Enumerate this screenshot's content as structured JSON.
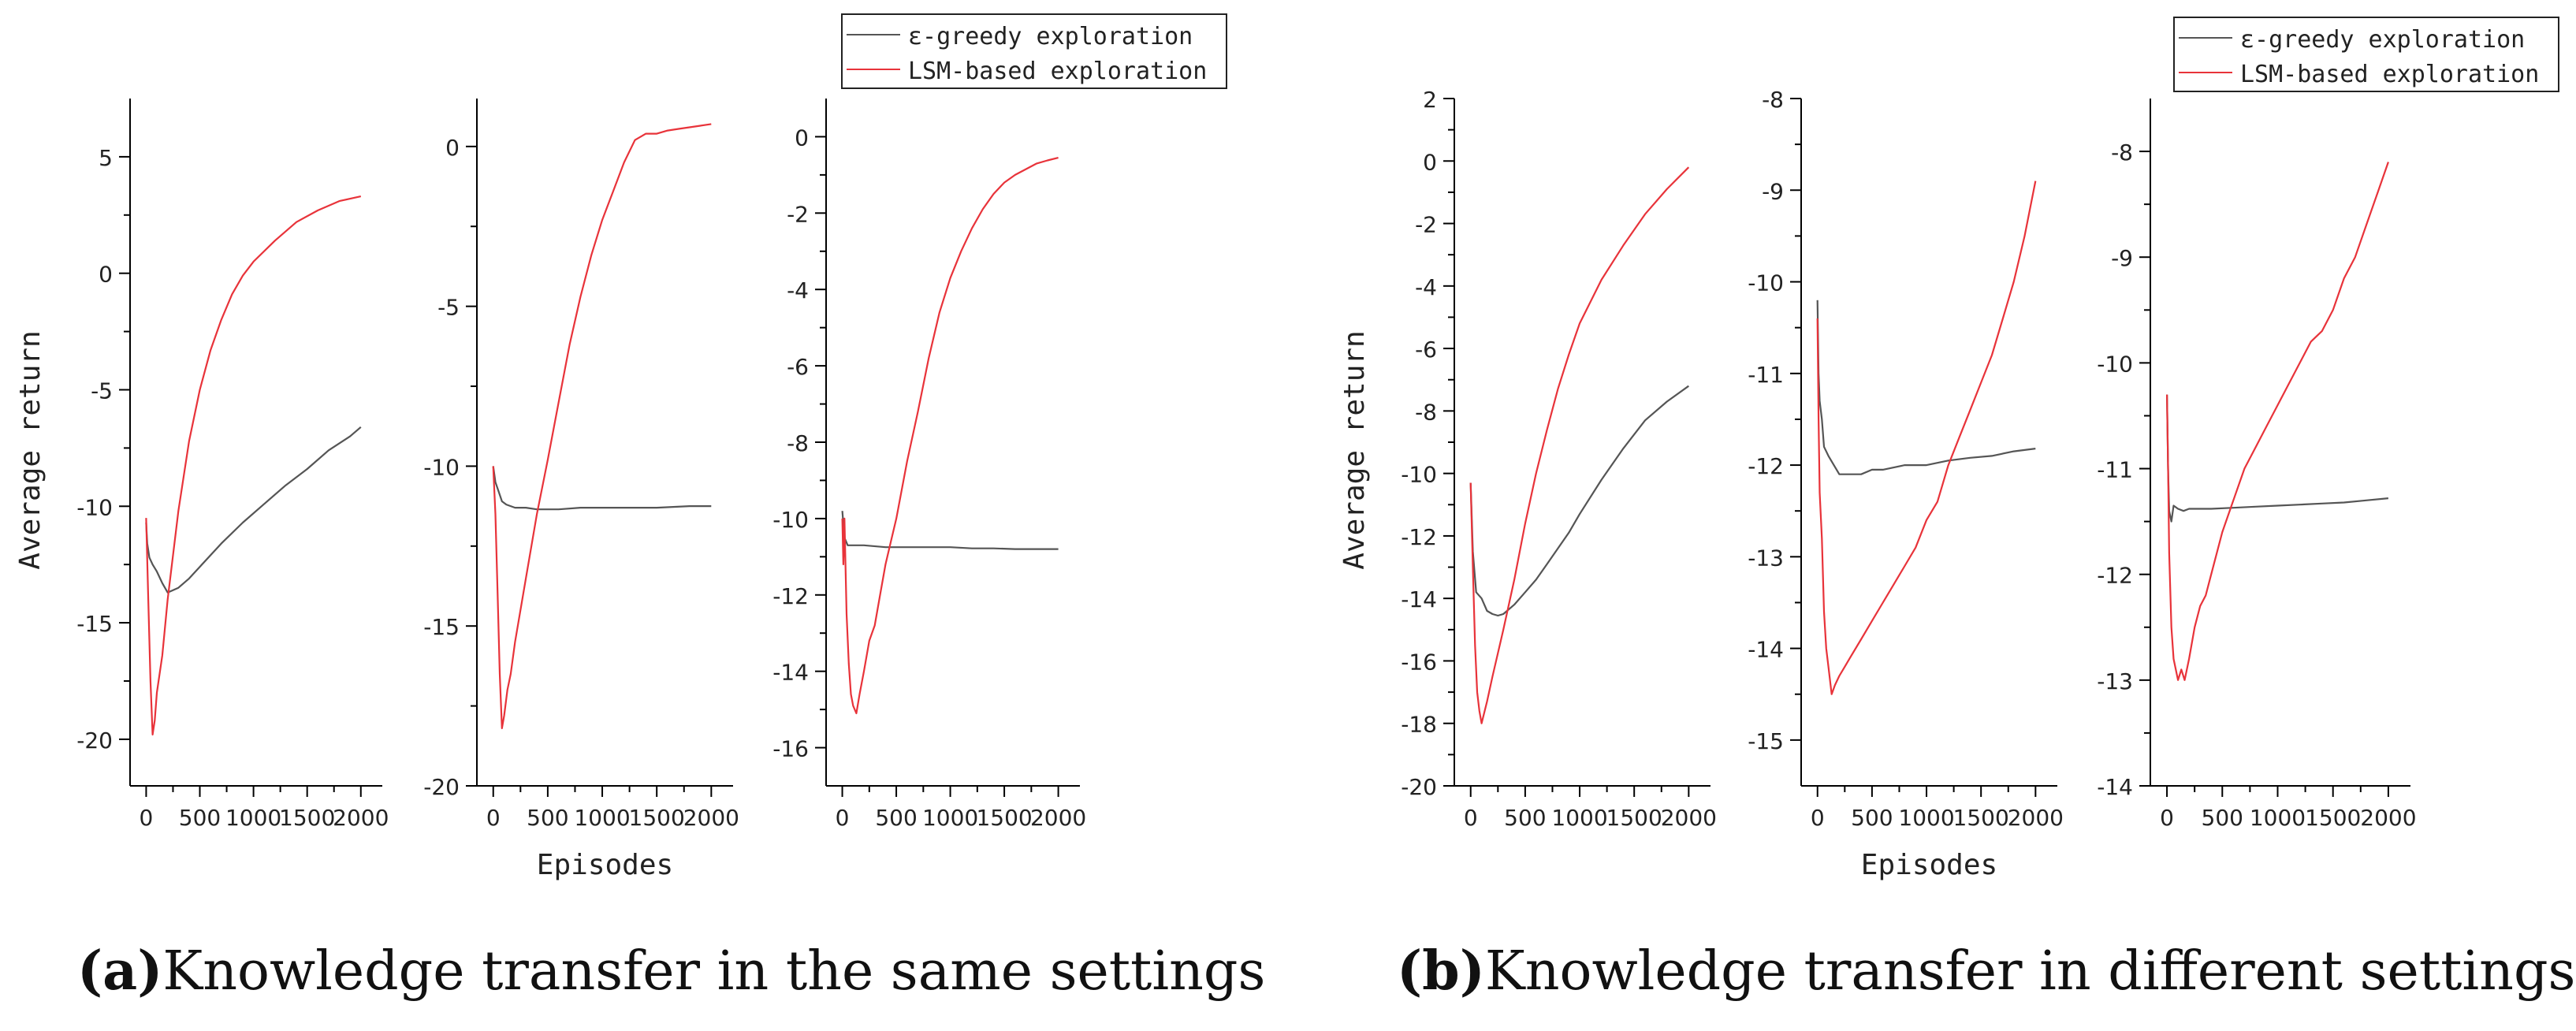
{
  "figure": {
    "caption_a_label": "(a)",
    "caption_a_text": "Knowledge transfer in the same settings",
    "caption_b_label": "(b)",
    "caption_b_text": "Knowledge transfer in different settings"
  },
  "colors": {
    "greedy": "#555555",
    "lsm": "#e8333a",
    "axis": "#000000",
    "text": "#222222"
  },
  "chart_data": [
    {
      "id": "a1",
      "group": "a",
      "type": "line",
      "ylabel": "Average return",
      "xlabel": "",
      "xlim": [
        -150,
        2200
      ],
      "ylim": [
        -22,
        7.5
      ],
      "xticks": [
        0,
        500,
        1000,
        1500,
        2000
      ],
      "xtick_labels": [
        "0",
        "500",
        "1000",
        "1500",
        "2000"
      ],
      "yticks": [
        -20,
        -15,
        -10,
        -5,
        0,
        5
      ],
      "ytick_labels": [
        "-20",
        "-15",
        "-10",
        "-5",
        "0",
        "5"
      ],
      "series": [
        {
          "name": "ε-greedy exploration",
          "key": "greedy",
          "x": [
            0,
            10,
            30,
            60,
            100,
            150,
            200,
            250,
            300,
            400,
            500,
            700,
            900,
            1100,
            1300,
            1500,
            1700,
            1900,
            2000
          ],
          "y": [
            -10.7,
            -11.6,
            -12.2,
            -12.5,
            -12.8,
            -13.3,
            -13.7,
            -13.6,
            -13.5,
            -13.1,
            -12.6,
            -11.6,
            -10.7,
            -9.9,
            -9.1,
            -8.4,
            -7.6,
            -7.0,
            -6.6
          ]
        },
        {
          "name": "LSM-based exploration",
          "key": "lsm",
          "x": [
            0,
            20,
            40,
            60,
            80,
            100,
            150,
            200,
            300,
            400,
            500,
            600,
            700,
            800,
            900,
            1000,
            1200,
            1400,
            1600,
            1800,
            2000
          ],
          "y": [
            -10.5,
            -14.0,
            -17.5,
            -19.8,
            -19.2,
            -18.0,
            -16.4,
            -14.0,
            -10.2,
            -7.2,
            -5.0,
            -3.3,
            -2.0,
            -0.9,
            -0.1,
            0.5,
            1.4,
            2.2,
            2.7,
            3.1,
            3.3
          ]
        }
      ]
    },
    {
      "id": "a2",
      "group": "a",
      "type": "line",
      "ylabel": "",
      "xlabel": "Episodes",
      "xlim": [
        -150,
        2200
      ],
      "ylim": [
        -20,
        1.5
      ],
      "xticks": [
        0,
        500,
        1000,
        1500,
        2000
      ],
      "xtick_labels": [
        "0",
        "500",
        "1000",
        "1500",
        "2000"
      ],
      "yticks": [
        -20,
        -15,
        -10,
        -5,
        0
      ],
      "ytick_labels": [
        "-20",
        "-15",
        "-10",
        "-5",
        "0"
      ],
      "series": [
        {
          "name": "ε-greedy exploration",
          "key": "greedy",
          "x": [
            0,
            20,
            50,
            80,
            120,
            200,
            300,
            400,
            600,
            800,
            1000,
            1200,
            1500,
            1800,
            2000
          ],
          "y": [
            -10.0,
            -10.5,
            -10.8,
            -11.1,
            -11.2,
            -11.3,
            -11.3,
            -11.35,
            -11.35,
            -11.3,
            -11.3,
            -11.3,
            -11.3,
            -11.25,
            -11.25
          ]
        },
        {
          "name": "LSM-based exploration",
          "key": "lsm",
          "x": [
            0,
            20,
            40,
            60,
            80,
            100,
            130,
            160,
            200,
            300,
            400,
            500,
            600,
            700,
            800,
            900,
            1000,
            1100,
            1200,
            1300,
            1400,
            1500,
            1600,
            1700,
            1800,
            1900,
            2000
          ],
          "y": [
            -10.0,
            -11.5,
            -14.0,
            -16.5,
            -18.2,
            -17.8,
            -17.0,
            -16.5,
            -15.5,
            -13.5,
            -11.5,
            -9.8,
            -8.0,
            -6.2,
            -4.7,
            -3.4,
            -2.3,
            -1.4,
            -0.5,
            0.2,
            0.4,
            0.4,
            0.5,
            0.55,
            0.6,
            0.65,
            0.7
          ]
        }
      ]
    },
    {
      "id": "a3",
      "group": "a",
      "type": "line",
      "ylabel": "",
      "xlabel": "",
      "xlim": [
        -150,
        2200
      ],
      "ylim": [
        -17,
        1
      ],
      "xticks": [
        0,
        500,
        1000,
        1500,
        2000
      ],
      "xtick_labels": [
        "0",
        "500",
        "1000",
        "1500",
        "2000"
      ],
      "yticks": [
        -16,
        -14,
        -12,
        -10,
        -8,
        -6,
        -4,
        -2,
        0
      ],
      "ytick_labels": [
        "-16",
        "-14",
        "-12",
        "-10",
        "-8",
        "-6",
        "-4",
        "-2",
        "0"
      ],
      "series": [
        {
          "name": "ε-greedy exploration",
          "key": "greedy",
          "x": [
            0,
            20,
            50,
            100,
            200,
            400,
            600,
            800,
            1000,
            1200,
            1400,
            1600,
            1800,
            2000
          ],
          "y": [
            -9.8,
            -10.5,
            -10.7,
            -10.7,
            -10.7,
            -10.75,
            -10.75,
            -10.75,
            -10.75,
            -10.78,
            -10.78,
            -10.8,
            -10.8,
            -10.8
          ]
        },
        {
          "name": "LSM-based exploration",
          "key": "lsm",
          "x": [
            0,
            10,
            20,
            40,
            60,
            80,
            100,
            130,
            160,
            200,
            250,
            300,
            350,
            400,
            450,
            500,
            600,
            700,
            800,
            900,
            1000,
            1100,
            1200,
            1300,
            1400,
            1500,
            1600,
            1700,
            1800,
            1900,
            2000
          ],
          "y": [
            -10.0,
            -11.2,
            -10.0,
            -12.5,
            -13.8,
            -14.6,
            -14.9,
            -15.1,
            -14.6,
            -14.0,
            -13.2,
            -12.8,
            -12.0,
            -11.2,
            -10.6,
            -10.0,
            -8.5,
            -7.2,
            -5.8,
            -4.6,
            -3.7,
            -3.0,
            -2.4,
            -1.9,
            -1.5,
            -1.2,
            -1.0,
            -0.85,
            -0.7,
            -0.62,
            -0.55
          ]
        }
      ]
    },
    {
      "id": "b1",
      "group": "b",
      "type": "line",
      "ylabel": "Average return",
      "xlabel": "",
      "xlim": [
        -150,
        2200
      ],
      "ylim": [
        -20,
        2
      ],
      "xticks": [
        0,
        500,
        1000,
        1500,
        2000
      ],
      "xtick_labels": [
        "0",
        "500",
        "1000",
        "1500",
        "2000"
      ],
      "yticks": [
        -20,
        -18,
        -16,
        -14,
        -12,
        -10,
        -8,
        -6,
        -4,
        -2,
        0,
        2
      ],
      "ytick_labels": [
        "-20",
        "-18",
        "-16",
        "-14",
        "-12",
        "-10",
        "-8",
        "-6",
        "-4",
        "-2",
        "0",
        "2"
      ],
      "series": [
        {
          "name": "ε-greedy exploration",
          "key": "greedy",
          "x": [
            0,
            20,
            50,
            100,
            150,
            200,
            250,
            300,
            400,
            500,
            600,
            700,
            800,
            900,
            1000,
            1200,
            1400,
            1600,
            1800,
            2000
          ],
          "y": [
            -10.3,
            -12.5,
            -13.8,
            -14.0,
            -14.4,
            -14.5,
            -14.55,
            -14.5,
            -14.2,
            -13.8,
            -13.4,
            -12.9,
            -12.4,
            -11.9,
            -11.3,
            -10.2,
            -9.2,
            -8.3,
            -7.7,
            -7.2
          ]
        },
        {
          "name": "LSM-based exploration",
          "key": "lsm",
          "x": [
            0,
            20,
            40,
            60,
            80,
            100,
            150,
            200,
            300,
            400,
            500,
            600,
            700,
            800,
            900,
            1000,
            1200,
            1400,
            1600,
            1800,
            2000
          ],
          "y": [
            -10.3,
            -13.0,
            -15.5,
            -17.0,
            -17.6,
            -18.0,
            -17.3,
            -16.5,
            -15.0,
            -13.4,
            -11.6,
            -10.0,
            -8.6,
            -7.3,
            -6.2,
            -5.2,
            -3.8,
            -2.7,
            -1.7,
            -0.9,
            -0.2
          ]
        }
      ]
    },
    {
      "id": "b2",
      "group": "b",
      "type": "line",
      "ylabel": "",
      "xlabel": "Episodes",
      "xlim": [
        -150,
        2200
      ],
      "ylim": [
        -15.5,
        -8
      ],
      "xticks": [
        0,
        500,
        1000,
        1500,
        2000
      ],
      "xtick_labels": [
        "0",
        "500",
        "1000",
        "1500",
        "2000"
      ],
      "yticks": [
        -15,
        -14,
        -13,
        -12,
        -11,
        -10,
        -9,
        -8
      ],
      "ytick_labels": [
        "-15",
        "-14",
        "-13",
        "-12",
        "-11",
        "-10",
        "-9",
        "-8"
      ],
      "series": [
        {
          "name": "ε-greedy exploration",
          "key": "greedy",
          "x": [
            0,
            10,
            20,
            40,
            60,
            100,
            150,
            200,
            300,
            400,
            500,
            600,
            800,
            1000,
            1200,
            1400,
            1600,
            1800,
            2000
          ],
          "y": [
            -10.2,
            -11.0,
            -11.3,
            -11.5,
            -11.8,
            -11.9,
            -12.0,
            -12.1,
            -12.1,
            -12.1,
            -12.05,
            -12.05,
            -12.0,
            -12.0,
            -11.95,
            -11.92,
            -11.9,
            -11.85,
            -11.82
          ]
        },
        {
          "name": "LSM-based exploration",
          "key": "lsm",
          "x": [
            0,
            10,
            20,
            40,
            60,
            80,
            100,
            130,
            160,
            200,
            250,
            300,
            400,
            500,
            600,
            700,
            800,
            900,
            1000,
            1100,
            1200,
            1300,
            1400,
            1500,
            1600,
            1700,
            1800,
            1900,
            2000
          ],
          "y": [
            -10.4,
            -11.5,
            -12.3,
            -12.8,
            -13.6,
            -14.0,
            -14.2,
            -14.5,
            -14.4,
            -14.3,
            -14.2,
            -14.1,
            -13.9,
            -13.7,
            -13.5,
            -13.3,
            -13.1,
            -12.9,
            -12.6,
            -12.4,
            -12.0,
            -11.7,
            -11.4,
            -11.1,
            -10.8,
            -10.4,
            -10.0,
            -9.5,
            -8.9
          ]
        }
      ]
    },
    {
      "id": "b3",
      "group": "b",
      "type": "line",
      "ylabel": "",
      "xlabel": "",
      "xlim": [
        -150,
        2200
      ],
      "ylim": [
        -14,
        -7.5
      ],
      "xticks": [
        0,
        500,
        1000,
        1500,
        2000
      ],
      "xtick_labels": [
        "0",
        "500",
        "1000",
        "1500",
        "2000"
      ],
      "yticks": [
        -14,
        -13,
        -12,
        -11,
        -10,
        -9,
        -8
      ],
      "ytick_labels": [
        "-14",
        "-13",
        "-12",
        "-11",
        "-10",
        "-9",
        "-8"
      ],
      "series": [
        {
          "name": "ε-greedy exploration",
          "key": "greedy",
          "x": [
            0,
            10,
            20,
            40,
            60,
            100,
            150,
            200,
            300,
            400,
            600,
            800,
            1000,
            1200,
            1400,
            1600,
            1800,
            2000
          ],
          "y": [
            -10.3,
            -11.0,
            -11.4,
            -11.5,
            -11.35,
            -11.38,
            -11.4,
            -11.38,
            -11.38,
            -11.38,
            -11.37,
            -11.36,
            -11.35,
            -11.34,
            -11.33,
            -11.32,
            -11.3,
            -11.28
          ]
        },
        {
          "name": "LSM-based exploration",
          "key": "lsm",
          "x": [
            0,
            10,
            20,
            40,
            60,
            80,
            100,
            130,
            160,
            200,
            250,
            300,
            350,
            400,
            500,
            600,
            700,
            800,
            900,
            1000,
            1100,
            1200,
            1300,
            1400,
            1500,
            1600,
            1700,
            1800,
            1900,
            2000
          ],
          "y": [
            -10.3,
            -11.0,
            -11.8,
            -12.5,
            -12.8,
            -12.9,
            -13.0,
            -12.9,
            -13.0,
            -12.8,
            -12.5,
            -12.3,
            -12.2,
            -12.0,
            -11.6,
            -11.3,
            -11.0,
            -10.8,
            -10.6,
            -10.4,
            -10.2,
            -10.0,
            -9.8,
            -9.7,
            -9.5,
            -9.2,
            -9.0,
            -8.7,
            -8.4,
            -8.1
          ]
        }
      ]
    }
  ],
  "legend": {
    "items": [
      {
        "label": "ε-greedy exploration",
        "key": "greedy"
      },
      {
        "label": "LSM-based exploration",
        "key": "lsm"
      }
    ]
  }
}
